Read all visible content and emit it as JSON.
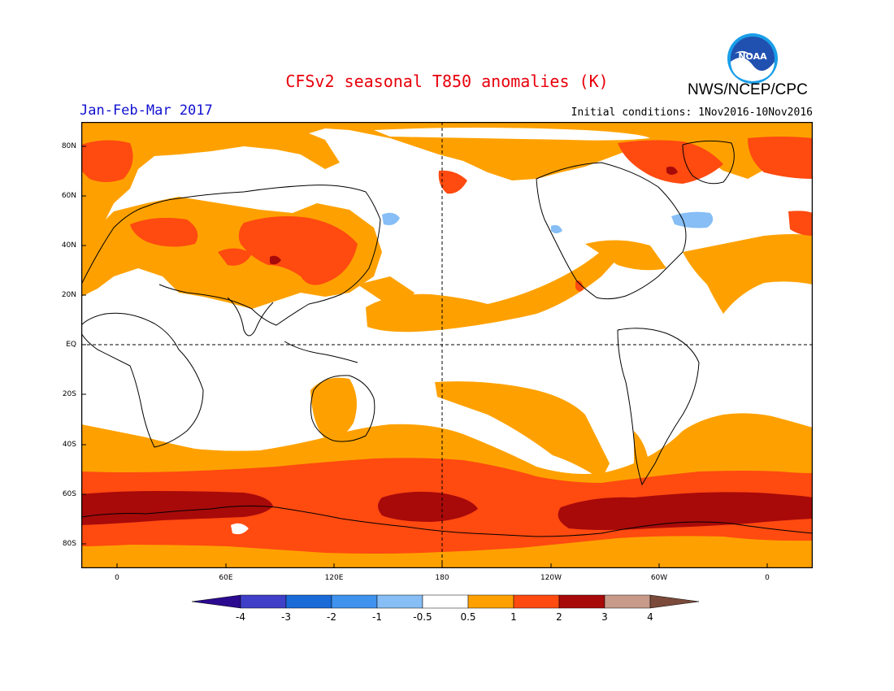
{
  "title": "CFSv2 seasonal T850 anomalies (K)",
  "agency": "NWS/NCEP/CPC",
  "logo_text": "NOAA",
  "period": "Jan-Feb-Mar 2017",
  "initial_conditions": "Initial conditions: 1Nov2016-10Nov2016",
  "lat_labels": [
    "80N",
    "60N",
    "40N",
    "20N",
    "EQ",
    "20S",
    "40S",
    "60S",
    "80S"
  ],
  "lon_labels": [
    "0",
    "60E",
    "120E",
    "180",
    "120W",
    "60W",
    "0"
  ],
  "colorbar": {
    "labels": [
      "-4",
      "-3",
      "-2",
      "-1",
      "-0.5",
      "0.5",
      "1",
      "2",
      "3",
      "4"
    ],
    "colors": [
      "#2c0a8f",
      "#3f3fc8",
      "#1a6ad8",
      "#3f92ee",
      "#86bef5",
      "#ffffff",
      "#fea100",
      "#ff4a10",
      "#a80a0a",
      "#c79a8a",
      "#7b4a3a"
    ]
  },
  "colors": {
    "anom_0p5_1": "#fea100",
    "anom_1_2": "#ff4a10",
    "anom_2_3": "#a80a0a",
    "anom_neg": "#86bef5"
  }
}
